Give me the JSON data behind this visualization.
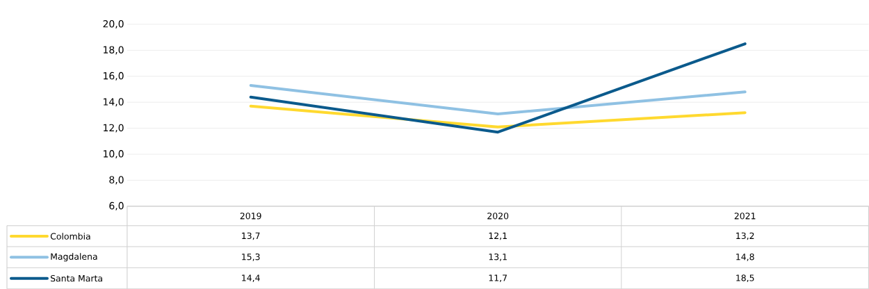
{
  "chart_data": {
    "type": "line",
    "categories": [
      "2019",
      "2020",
      "2021"
    ],
    "series": [
      {
        "name": "Colombia",
        "color": "#ffd92f",
        "values": [
          13.7,
          12.1,
          13.2
        ],
        "value_labels": [
          "13,7",
          "12,1",
          "13,2"
        ]
      },
      {
        "name": "Magdalena",
        "color": "#8fc1e3",
        "values": [
          15.3,
          13.1,
          14.8
        ],
        "value_labels": [
          "15,3",
          "13,1",
          "14,8"
        ]
      },
      {
        "name": "Santa Marta",
        "color": "#0b5a8c",
        "values": [
          14.4,
          11.7,
          18.5
        ],
        "value_labels": [
          "14,4",
          "11,7",
          "18,5"
        ]
      }
    ],
    "ylim": [
      6,
      20
    ],
    "yticks": [
      {
        "value": 6,
        "label": "6,0"
      },
      {
        "value": 8,
        "label": "8,0"
      },
      {
        "value": 10,
        "label": "10,0"
      },
      {
        "value": 12,
        "label": "12,0"
      },
      {
        "value": 14,
        "label": "14,0"
      },
      {
        "value": 16,
        "label": "16,0"
      },
      {
        "value": 18,
        "label": "18,0"
      },
      {
        "value": 20,
        "label": "20,0"
      }
    ],
    "grid": "y",
    "legend": "left",
    "marker": "none",
    "line_style": "solid"
  }
}
